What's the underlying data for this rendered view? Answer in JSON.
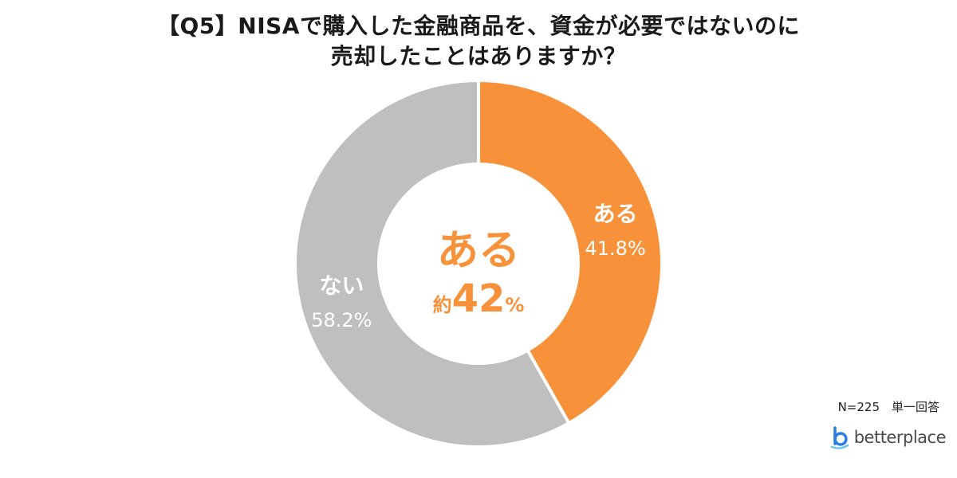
{
  "title": {
    "line1": "【Q5】NISAで購入した金融商品を、資金が必要ではないのに",
    "line2": "売却したことはありますか？"
  },
  "chart_data": {
    "type": "pie",
    "subtype": "donut",
    "start_angle_deg": 0,
    "direction": "clockwise",
    "slices": [
      {
        "label": "ある",
        "value": 41.8,
        "value_label": "41.8%",
        "color": "#f7913a"
      },
      {
        "label": "ない",
        "value": 58.2,
        "value_label": "58.2%",
        "color": "#bfbfbf"
      }
    ],
    "center_label": {
      "main": "ある",
      "prefix": "約",
      "value": "42",
      "unit": "%",
      "color": "#f7913a"
    }
  },
  "footnote": "N=225　単一回答",
  "logo": {
    "text_part1": "better",
    "text_part2": "place",
    "colors": {
      "primary": "#2a7de1",
      "text": "#4a4a4a"
    }
  }
}
